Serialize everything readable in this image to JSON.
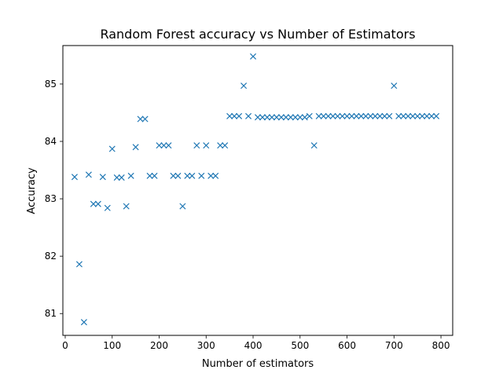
{
  "chart_data": {
    "type": "scatter",
    "title": "Random Forest accuracy vs Number of Estimators",
    "xlabel": "Number of estimators",
    "ylabel": "Accuracy",
    "xlim": [
      -5,
      825
    ],
    "ylim": [
      80.62,
      85.67
    ],
    "xticks": [
      0,
      100,
      200,
      300,
      400,
      500,
      600,
      700,
      800
    ],
    "yticks": [
      81,
      82,
      83,
      84,
      85
    ],
    "marker": "x",
    "grid": false,
    "color": "#1f77b4",
    "series": [
      {
        "x": [
          20,
          30,
          40,
          50,
          60,
          70,
          80,
          90,
          100,
          110,
          120,
          130,
          140,
          150,
          160,
          170,
          180,
          190,
          200,
          210,
          220,
          230,
          240,
          250,
          260,
          270,
          280,
          290,
          300,
          310,
          320,
          330,
          340,
          350,
          360,
          370,
          380,
          390,
          400,
          410,
          420,
          430,
          440,
          450,
          460,
          470,
          480,
          490,
          500,
          510,
          520,
          530,
          540,
          550,
          560,
          570,
          580,
          590,
          600,
          610,
          620,
          630,
          640,
          650,
          660,
          670,
          680,
          690,
          700,
          710,
          720,
          730,
          740,
          750,
          760,
          770,
          780,
          790
        ],
        "y": [
          83.38,
          81.86,
          80.85,
          83.42,
          82.91,
          82.91,
          83.38,
          82.84,
          83.87,
          83.37,
          83.37,
          82.87,
          83.4,
          83.9,
          84.39,
          84.39,
          83.4,
          83.4,
          83.93,
          83.93,
          83.93,
          83.4,
          83.4,
          82.87,
          83.4,
          83.4,
          83.93,
          83.4,
          83.93,
          83.4,
          83.4,
          83.93,
          83.93,
          84.44,
          84.44,
          84.44,
          84.97,
          84.44,
          85.48,
          84.42,
          84.42,
          84.42,
          84.42,
          84.42,
          84.42,
          84.42,
          84.42,
          84.42,
          84.42,
          84.42,
          84.44,
          83.93,
          84.44,
          84.44,
          84.44,
          84.44,
          84.44,
          84.44,
          84.44,
          84.44,
          84.44,
          84.44,
          84.44,
          84.44,
          84.44,
          84.44,
          84.44,
          84.44,
          84.97,
          84.44,
          84.44,
          84.44,
          84.44,
          84.44,
          84.44,
          84.44,
          84.44,
          84.44
        ]
      }
    ]
  }
}
